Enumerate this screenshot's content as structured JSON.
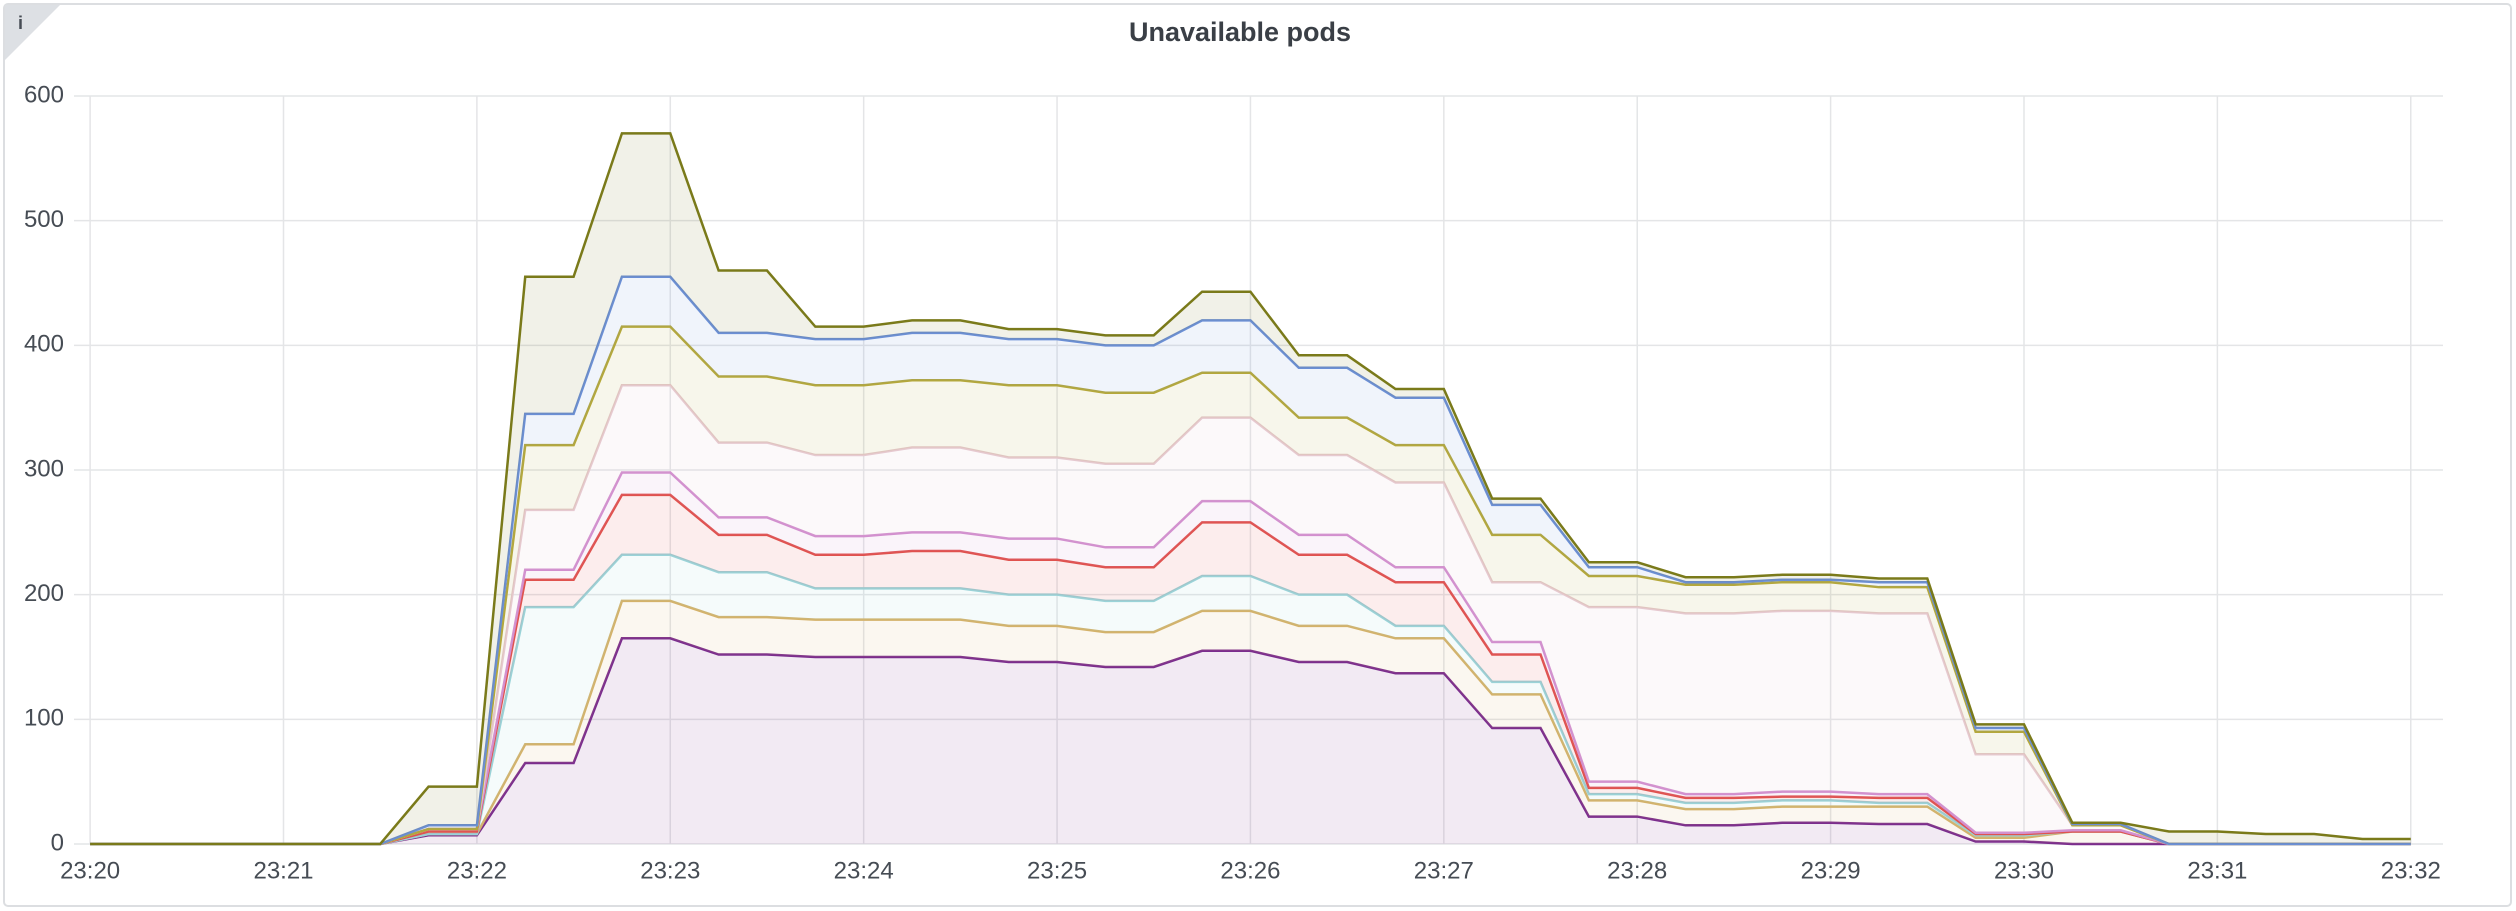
{
  "info_icon": "i",
  "chart_data": {
    "type": "stacked_area",
    "title": "Unavailable pods",
    "x": [
      "23:20:00",
      "23:21:30",
      "23:21:45",
      "23:22:00",
      "23:22:15",
      "23:22:30",
      "23:22:45",
      "23:23:00",
      "23:23:15",
      "23:23:30",
      "23:23:45",
      "23:24:00",
      "23:24:15",
      "23:24:30",
      "23:24:45",
      "23:25:00",
      "23:25:15",
      "23:25:30",
      "23:25:45",
      "23:26:00",
      "23:26:15",
      "23:26:30",
      "23:26:45",
      "23:27:00",
      "23:27:15",
      "23:27:30",
      "23:27:45",
      "23:28:00",
      "23:28:15",
      "23:28:30",
      "23:28:45",
      "23:29:00",
      "23:29:15",
      "23:29:30",
      "23:29:45",
      "23:30:00",
      "23:30:15",
      "23:30:30",
      "23:30:45",
      "23:31:00",
      "23:31:15",
      "23:31:30",
      "23:31:45",
      "23:32:00"
    ],
    "series": [
      {
        "color": "#7b2d8e",
        "values": [
          0,
          0,
          7,
          7,
          65,
          65,
          165,
          165,
          152,
          152,
          150,
          150,
          150,
          150,
          146,
          146,
          142,
          142,
          155,
          155,
          146,
          146,
          137,
          137,
          93,
          93,
          22,
          22,
          15,
          15,
          17,
          17,
          16,
          16,
          2,
          2,
          0,
          0,
          0,
          0,
          0,
          0,
          0,
          0
        ]
      },
      {
        "color": "#d4b26a",
        "values": [
          0,
          0,
          1,
          1,
          15,
          15,
          30,
          30,
          30,
          30,
          30,
          30,
          30,
          30,
          29,
          29,
          28,
          28,
          32,
          32,
          29,
          29,
          28,
          28,
          27,
          27,
          13,
          13,
          13,
          13,
          13,
          13,
          14,
          14,
          3,
          3,
          10,
          10,
          0,
          0,
          0,
          0,
          0,
          0
        ]
      },
      {
        "color": "#9ad3d8",
        "values": [
          0,
          0,
          0,
          0,
          110,
          110,
          37,
          37,
          36,
          36,
          25,
          25,
          25,
          25,
          25,
          25,
          25,
          25,
          28,
          28,
          25,
          25,
          10,
          10,
          10,
          10,
          5,
          5,
          5,
          5,
          5,
          5,
          3,
          3,
          2,
          2,
          0,
          0,
          0,
          0,
          0,
          0,
          0,
          0
        ]
      },
      {
        "color": "#e0524e",
        "values": [
          0,
          0,
          2,
          2,
          22,
          22,
          48,
          48,
          30,
          30,
          27,
          27,
          30,
          30,
          28,
          28,
          27,
          27,
          43,
          43,
          32,
          32,
          35,
          35,
          22,
          22,
          5,
          5,
          4,
          4,
          3,
          3,
          4,
          4,
          1,
          1,
          0,
          0,
          0,
          0,
          0,
          0,
          0,
          0
        ]
      },
      {
        "color": "#d28fcf",
        "values": [
          0,
          0,
          2,
          2,
          8,
          8,
          18,
          18,
          14,
          14,
          15,
          15,
          15,
          15,
          17,
          17,
          16,
          16,
          17,
          17,
          16,
          16,
          12,
          12,
          10,
          10,
          5,
          5,
          3,
          3,
          4,
          4,
          3,
          3,
          1,
          1,
          1,
          1,
          0,
          0,
          0,
          0,
          0,
          0
        ]
      },
      {
        "color": "#e6c9d0",
        "values": [
          0,
          0,
          0,
          0,
          48,
          48,
          70,
          70,
          60,
          60,
          65,
          65,
          68,
          68,
          65,
          65,
          67,
          67,
          67,
          67,
          64,
          64,
          68,
          68,
          48,
          48,
          140,
          140,
          145,
          145,
          145,
          145,
          145,
          145,
          63,
          63,
          4,
          4,
          0,
          0,
          0,
          0,
          0,
          0
        ]
      },
      {
        "color": "#b5a83a",
        "values": [
          0,
          0,
          0,
          0,
          52,
          52,
          47,
          47,
          53,
          53,
          56,
          56,
          54,
          54,
          58,
          58,
          57,
          57,
          36,
          36,
          30,
          30,
          30,
          30,
          38,
          38,
          25,
          25,
          23,
          23,
          23,
          23,
          21,
          21,
          18,
          18,
          0,
          0,
          0,
          0,
          0,
          0,
          0,
          0
        ]
      },
      {
        "color": "#6b8fd6",
        "values": [
          0,
          0,
          3,
          3,
          25,
          25,
          40,
          40,
          35,
          35,
          37,
          37,
          38,
          38,
          37,
          37,
          38,
          38,
          42,
          42,
          40,
          40,
          38,
          38,
          24,
          24,
          7,
          7,
          2,
          2,
          2,
          2,
          4,
          4,
          3,
          3,
          1,
          1,
          0,
          0,
          0,
          0,
          0,
          0
        ]
      },
      {
        "color": "#7a7a1a",
        "values": [
          0,
          0,
          31,
          31,
          110,
          110,
          115,
          115,
          50,
          50,
          10,
          10,
          10,
          10,
          8,
          8,
          8,
          8,
          23,
          23,
          10,
          10,
          7,
          7,
          5,
          5,
          4,
          4,
          4,
          4,
          4,
          4,
          3,
          3,
          3,
          3,
          1,
          1,
          10,
          10,
          8,
          8,
          4,
          4
        ]
      }
    ],
    "xlim": [
      "23:19:55",
      "23:32:10"
    ],
    "xticks": [
      "23:20",
      "23:21",
      "23:22",
      "23:23",
      "23:24",
      "23:25",
      "23:26",
      "23:27",
      "23:28",
      "23:29",
      "23:30",
      "23:31",
      "23:32"
    ],
    "ylim": [
      0,
      600
    ],
    "yticks": [
      0,
      100,
      200,
      300,
      400,
      500,
      600
    ],
    "grid": true,
    "fill_opacity": 0.1
  }
}
